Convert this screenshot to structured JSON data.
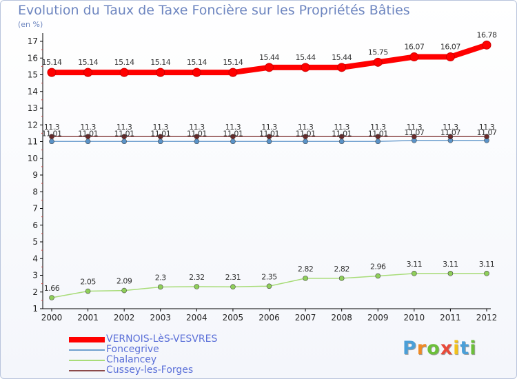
{
  "chart_data": {
    "type": "line",
    "title": "Evolution du Taux de Taxe Foncière sur les Propriétés Bâties",
    "ylabel": "(en %)",
    "xlabel": "",
    "categories": [
      "2000",
      "2001",
      "2002",
      "2003",
      "2004",
      "2005",
      "2006",
      "2007",
      "2008",
      "2009",
      "2010",
      "2011",
      "2012"
    ],
    "ylim": [
      1,
      17
    ],
    "yticks": [
      "1",
      "2",
      "3",
      "4",
      "5",
      "6",
      "7",
      "8",
      "9",
      "10",
      "11",
      "12",
      "13",
      "14",
      "15",
      "16",
      "17"
    ],
    "series": [
      {
        "name": "VERNOIS-LèS-VESVRES",
        "color": "#ff0000",
        "values": [
          15.14,
          15.14,
          15.14,
          15.14,
          15.14,
          15.14,
          15.44,
          15.44,
          15.44,
          15.75,
          16.07,
          16.07,
          16.78
        ],
        "labels": [
          "15.14",
          "15.14",
          "15.14",
          "15.14",
          "15.14",
          "15.14",
          "15.44",
          "15.44",
          "15.44",
          "15.75",
          "16.07",
          "16.07",
          "16.78"
        ]
      },
      {
        "name": "Foncegrive",
        "color": "#6fa0cf",
        "values": [
          11.01,
          11.01,
          11.01,
          11.01,
          11.01,
          11.01,
          11.01,
          11.01,
          11.01,
          11.01,
          11.07,
          11.07,
          11.07
        ],
        "labels": [
          "11.01",
          "11.01",
          "11.01",
          "11.01",
          "11.01",
          "11.01",
          "11.01",
          "11.01",
          "11.01",
          "11.01",
          "11.07",
          "11.07",
          "11.07"
        ]
      },
      {
        "name": "Chalancey",
        "color": "#a8dc78",
        "values": [
          1.66,
          2.05,
          2.09,
          2.3,
          2.32,
          2.31,
          2.35,
          2.82,
          2.82,
          2.96,
          3.11,
          3.11,
          3.11
        ],
        "labels": [
          "1.66",
          "2.05",
          "2.09",
          "2.3",
          "2.32",
          "2.31",
          "2.35",
          "2.82",
          "2.82",
          "2.96",
          "3.11",
          "3.11",
          "3.11"
        ]
      },
      {
        "name": "Cussey-les-Forges",
        "color": "#8c4a4a",
        "values": [
          11.3,
          11.3,
          11.3,
          11.3,
          11.3,
          11.3,
          11.3,
          11.3,
          11.3,
          11.3,
          11.3,
          11.3,
          11.3
        ],
        "labels": [
          "11.3",
          "11.3",
          "11.3",
          "11.3",
          "11.3",
          "11.3",
          "11.3",
          "11.3",
          "11.3",
          "11.3",
          "11.3",
          "11.3",
          "11.3"
        ]
      }
    ],
    "legend": [
      "VERNOIS-LèS-VESVRES",
      "Foncegrive",
      "Chalancey",
      "Cussey-les-Forges"
    ],
    "legend_position": "bottom-left"
  },
  "logo": {
    "letters": [
      "P",
      "r",
      "o",
      "x",
      "i",
      "t",
      "i"
    ],
    "colors": [
      "#4a9fd8",
      "#f08a24",
      "#6cbf3a",
      "#e84a3a",
      "#f2c21c",
      "#4a9fd8",
      "#6cbf3a"
    ]
  }
}
